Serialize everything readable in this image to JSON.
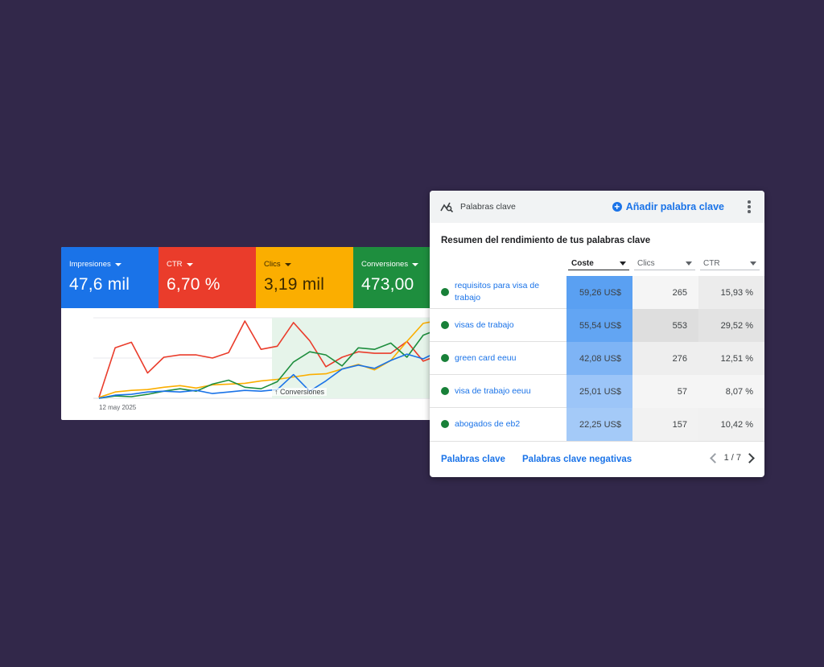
{
  "metrics": [
    {
      "label": "Impresiones",
      "value": "47,6 mil",
      "color": "#1a73e8"
    },
    {
      "label": "CTR",
      "value": "6,70 %",
      "color": "#ea3c2b"
    },
    {
      "label": "Clics",
      "value": "3,19 mil",
      "color": "#fbae00"
    },
    {
      "label": "Conversiones",
      "value": "473,00",
      "color": "#1e8e3e"
    }
  ],
  "chart": {
    "start_date": "12 may 2025",
    "annotation": "Conversiones",
    "annotation_icon": "arrow-up-icon",
    "series": [
      {
        "metric": "CTR",
        "color": "#ea3c2b",
        "values": [
          0.01,
          0.64,
          0.71,
          0.32,
          0.52,
          0.55,
          0.55,
          0.51,
          0.58,
          0.98,
          0.62,
          0.66,
          0.96,
          0.73,
          0.4,
          0.52,
          0.59,
          0.57,
          0.57,
          0.72,
          0.47,
          0.55
        ]
      },
      {
        "metric": "Clics",
        "color": "#fbae00",
        "values": [
          0.01,
          0.08,
          0.1,
          0.11,
          0.14,
          0.16,
          0.13,
          0.17,
          0.18,
          0.19,
          0.22,
          0.24,
          0.27,
          0.3,
          0.31,
          0.37,
          0.43,
          0.36,
          0.48,
          0.72,
          0.95,
          0.99
        ]
      },
      {
        "metric": "Conversiones",
        "color": "#1e8e3e",
        "values": [
          0.0,
          0.03,
          0.02,
          0.05,
          0.09,
          0.12,
          0.09,
          0.18,
          0.23,
          0.14,
          0.12,
          0.21,
          0.46,
          0.59,
          0.55,
          0.41,
          0.64,
          0.62,
          0.7,
          0.52,
          0.8,
          0.88
        ]
      },
      {
        "metric": "Impresiones",
        "color": "#1a73e8",
        "values": [
          0.0,
          0.04,
          0.05,
          0.08,
          0.09,
          0.08,
          0.1,
          0.06,
          0.08,
          0.1,
          0.09,
          0.11,
          0.3,
          0.09,
          0.22,
          0.37,
          0.42,
          0.38,
          0.48,
          0.56,
          0.5,
          0.6
        ]
      }
    ]
  },
  "keywords": {
    "title": "Palabras clave",
    "title_icon": "keyword-insights-icon",
    "add_label": "Añadir palabra clave",
    "more_icon": "more-vert-icon",
    "subtitle": "Resumen del rendimiento de tus palabras clave",
    "columns": [
      "Coste",
      "Clics",
      "CTR"
    ],
    "sorted_column": "Coste",
    "rows": [
      {
        "keyword": "requisitos para visa de trabajo",
        "cost": "59,26 US$",
        "clicks": "265",
        "ctr": "15,93 %",
        "status": "enabled",
        "cost_shade": 1.0,
        "clicks_shade": 0.0,
        "ctr_shade": 0.5
      },
      {
        "keyword": "visas de trabajo",
        "cost": "55,54 US$",
        "clicks": "553",
        "ctr": "29,52 %",
        "status": "enabled",
        "cost_shade": 0.93,
        "clicks_shade": 1.0,
        "ctr_shade": 1.0
      },
      {
        "keyword": "green card eeuu",
        "cost": "42,08 US$",
        "clicks": "276",
        "ctr": "12,51 %",
        "status": "enabled",
        "cost_shade": 0.7,
        "clicks_shade": 0.32,
        "ctr_shade": 0.38
      },
      {
        "keyword": "visa de trabajo eeuu",
        "cost": "25,01 US$",
        "clicks": "57",
        "ctr": "8,07 %",
        "status": "enabled",
        "cost_shade": 0.45,
        "clicks_shade": 0.0,
        "ctr_shade": 0.0
      },
      {
        "keyword": "abogados de eb2",
        "cost": "22,25 US$",
        "clicks": "157",
        "ctr": "10,42 %",
        "status": "enabled",
        "cost_shade": 0.38,
        "clicks_shade": 0.15,
        "ctr_shade": 0.2
      }
    ],
    "footer_links": [
      "Palabras clave",
      "Palabras clave negativas"
    ],
    "pager": "1 / 7"
  },
  "colors": {
    "background": "#32284a",
    "accent_blue": "#1a73e8",
    "status_green": "#188038"
  }
}
